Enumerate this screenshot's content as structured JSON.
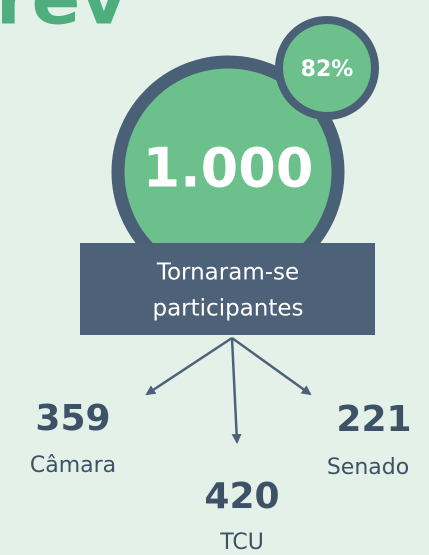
{
  "header": {
    "title": "rev"
  },
  "total": {
    "value": "1.000",
    "badge": "82%"
  },
  "box": {
    "lines": [
      "Tornaram-se",
      "participantes"
    ]
  },
  "branches": [
    {
      "value": 359,
      "label": "Câmara"
    },
    {
      "value": 420,
      "label": "TCU"
    },
    {
      "value": 221,
      "label": "Senado"
    }
  ]
}
